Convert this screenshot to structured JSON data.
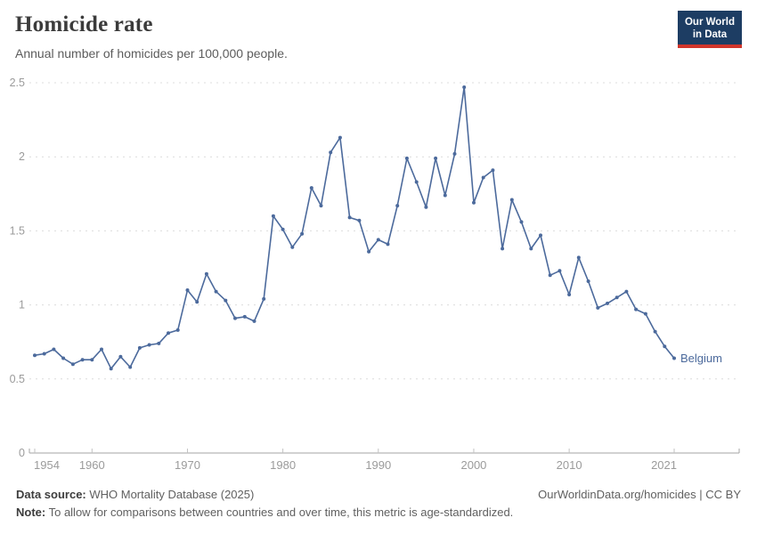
{
  "header": {
    "title": "Homicide rate",
    "subtitle": "Annual number of homicides per 100,000 people.",
    "logo": {
      "line1": "Our World",
      "line2": "in Data"
    }
  },
  "entity_label": "Belgium",
  "colors": {
    "line": "#4C6A9C",
    "grid": "#dcdcdc",
    "axis": "#a6a6a6",
    "tick_text": "#9b9b9b",
    "logo_navy": "#1d3d63",
    "logo_red": "#d1352b"
  },
  "chart_data": {
    "type": "line",
    "title": "Homicide rate",
    "subtitle": "Annual number of homicides per 100,000 people.",
    "xlabel": "",
    "ylabel": "",
    "xlim": [
      1954,
      2021
    ],
    "ylim": [
      0,
      2.5
    ],
    "grid": "horizontal dashed",
    "legend_position": "end-of-line label",
    "y_ticks": [
      0,
      0.5,
      1,
      1.5,
      2,
      2.5
    ],
    "y_tick_labels": [
      "0",
      "0.5",
      "1",
      "1.5",
      "2",
      "2.5"
    ],
    "x_ticks": [
      1954,
      1960,
      1970,
      1980,
      1990,
      2000,
      2010,
      2021
    ],
    "series": [
      {
        "name": "Belgium",
        "color": "#4C6A9C",
        "x": [
          1954,
          1955,
          1956,
          1957,
          1958,
          1959,
          1960,
          1961,
          1962,
          1963,
          1964,
          1965,
          1966,
          1967,
          1968,
          1969,
          1970,
          1971,
          1972,
          1973,
          1974,
          1975,
          1976,
          1977,
          1978,
          1979,
          1980,
          1981,
          1982,
          1983,
          1984,
          1985,
          1986,
          1987,
          1988,
          1989,
          1990,
          1991,
          1992,
          1993,
          1994,
          1995,
          1996,
          1997,
          1998,
          1999,
          2000,
          2001,
          2002,
          2003,
          2004,
          2005,
          2006,
          2007,
          2008,
          2009,
          2010,
          2011,
          2012,
          2013,
          2014,
          2015,
          2016,
          2017,
          2018,
          2019,
          2020,
          2021
        ],
        "values": [
          0.66,
          0.67,
          0.7,
          0.64,
          0.6,
          0.63,
          0.63,
          0.7,
          0.57,
          0.65,
          0.58,
          0.71,
          0.73,
          0.74,
          0.81,
          0.83,
          1.1,
          1.02,
          1.21,
          1.09,
          1.03,
          0.91,
          0.92,
          0.89,
          1.04,
          1.6,
          1.51,
          1.39,
          1.48,
          1.79,
          1.67,
          2.03,
          2.13,
          1.59,
          1.57,
          1.36,
          1.44,
          1.41,
          1.67,
          1.99,
          1.83,
          1.66,
          1.99,
          1.74,
          2.02,
          2.47,
          1.69,
          1.86,
          1.91,
          1.38,
          1.71,
          1.56,
          1.38,
          1.47,
          1.2,
          1.23,
          1.07,
          1.32,
          1.16,
          0.98,
          1.01,
          1.05,
          1.09,
          0.97,
          0.94,
          0.82,
          0.72,
          0.64
        ]
      }
    ]
  },
  "footer": {
    "source_label": "Data source:",
    "source_text": " WHO Mortality Database (2025)",
    "link_text": "OurWorldinData.org/homicides | CC BY",
    "note_label": "Note:",
    "note_text": " To allow for comparisons between countries and over time, this metric is age-standardized."
  }
}
